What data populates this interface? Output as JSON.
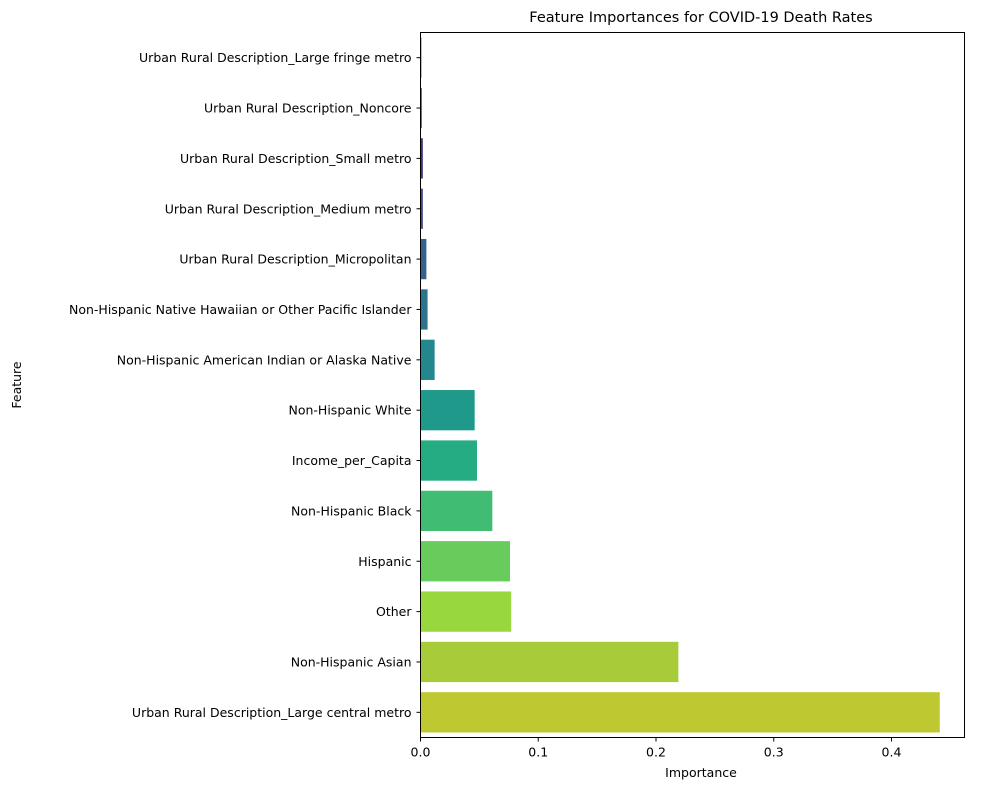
{
  "chart_data": {
    "type": "bar",
    "orientation": "horizontal",
    "title": "Feature Importances for COVID-19 Death Rates",
    "xlabel": "Importance",
    "ylabel": "Feature",
    "xlim": [
      0,
      0.462
    ],
    "xticks": [
      0.0,
      0.1,
      0.2,
      0.3,
      0.4
    ],
    "xtick_labels": [
      "0.0",
      "0.1",
      "0.2",
      "0.3",
      "0.4"
    ],
    "grid": false,
    "legend": "none",
    "categories": [
      "Urban Rural Description_Large fringe metro",
      "Urban Rural Description_Noncore",
      "Urban Rural Description_Small metro",
      "Urban Rural Description_Medium metro",
      "Urban Rural Description_Micropolitan",
      "Non-Hispanic Native Hawaiian or Other Pacific Islander",
      "Non-Hispanic American Indian or Alaska Native",
      "Non-Hispanic White",
      "Income_per_Capita",
      "Non-Hispanic Black",
      "Hispanic",
      "Other",
      "Non-Hispanic Asian",
      "Urban Rural Description_Large central metro"
    ],
    "values": [
      0.0,
      0.001,
      0.002,
      0.002,
      0.005,
      0.006,
      0.012,
      0.046,
      0.048,
      0.061,
      0.076,
      0.077,
      0.219,
      0.441
    ],
    "colors": [
      "#440154",
      "#471a6e",
      "#453581",
      "#3d4d8a",
      "#34618d",
      "#2b748e",
      "#24878e",
      "#1f998a",
      "#25ac82",
      "#40bd72",
      "#67cc5c",
      "#98d83e",
      "#a8cb3a",
      "#bec932"
    ]
  }
}
